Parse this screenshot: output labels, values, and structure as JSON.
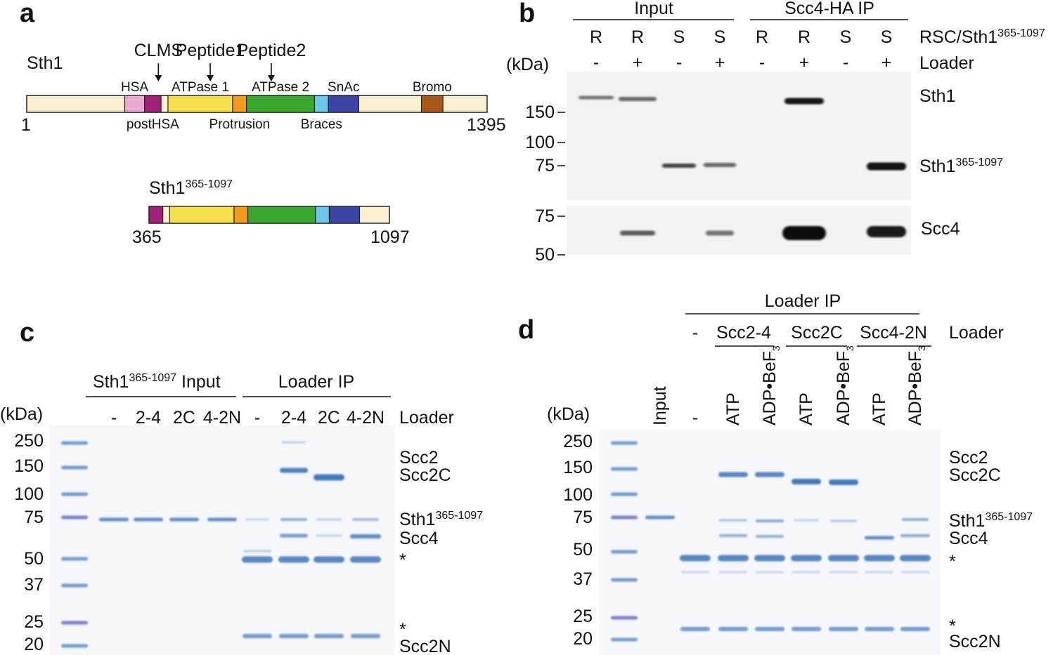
{
  "colors": {
    "linker": "#fbf0d0",
    "HSA": "#e8a9d3",
    "postHSA": "#a0207a",
    "ATPase1": "#f5e04c",
    "Protrusion": "#f39a1f",
    "ATPase2": "#3aa82f",
    "Braces": "#6cc7e8",
    "SnAc": "#3b45a6",
    "Bromo": "#a8561a",
    "blot_bg": "#f2f2f2",
    "gel_bg": "#f4f6fa",
    "coomassie": "#3d73b8"
  },
  "panel_a": {
    "label": "a",
    "protein": "Sth1",
    "start": "1",
    "end": "1395",
    "markers": [
      {
        "label": "CLMS",
        "pos": 399
      },
      {
        "label": "Peptide1",
        "pos": 556
      },
      {
        "label": "Peptide2",
        "pos": 741
      }
    ],
    "domains": [
      {
        "name": "HSA",
        "start": 297,
        "end": 357,
        "key": "HSA",
        "label_pos": "above"
      },
      {
        "name": "postHSA",
        "start": 357,
        "end": 407,
        "key": "postHSA",
        "label_pos": "below"
      },
      {
        "name": "ATPase 1",
        "start": 428,
        "end": 624,
        "key": "ATPase1",
        "label_pos": "above"
      },
      {
        "name": "Protrusion",
        "start": 624,
        "end": 666,
        "key": "Protrusion",
        "label_pos": "below"
      },
      {
        "name": "ATPase 2",
        "start": 666,
        "end": 872,
        "key": "ATPase2",
        "label_pos": "above"
      },
      {
        "name": "Braces",
        "start": 872,
        "end": 914,
        "key": "Braces",
        "label_pos": "below"
      },
      {
        "name": "SnAc",
        "start": 914,
        "end": 1006,
        "key": "SnAc",
        "label_pos": "above"
      },
      {
        "name": "Bromo",
        "start": 1196,
        "end": 1261,
        "key": "Bromo",
        "label_pos": "above"
      }
    ],
    "construct": {
      "name": "Sth1",
      "superscript": "365-1097",
      "start": "365",
      "end": "1097",
      "range": [
        365,
        1097
      ]
    }
  },
  "panel_b": {
    "label": "b",
    "group_labels": [
      "Input",
      "Scc4-HA IP"
    ],
    "row1_label": "RSC/Sth1",
    "row1_superscript": "365-1097",
    "row2_label": "Loader",
    "kda_label": "(kDa)",
    "lanes": [
      {
        "strain": "R",
        "loader": "-"
      },
      {
        "strain": "R",
        "loader": "+"
      },
      {
        "strain": "S",
        "loader": "-"
      },
      {
        "strain": "S",
        "loader": "+"
      },
      {
        "strain": "R",
        "loader": "-"
      },
      {
        "strain": "R",
        "loader": "+"
      },
      {
        "strain": "S",
        "loader": "-"
      },
      {
        "strain": "S",
        "loader": "+"
      }
    ],
    "top_ladder": [
      "150",
      "100",
      "75"
    ],
    "bottom_ladder": [
      "75",
      "50"
    ],
    "bands": {
      "sth1": "Sth1",
      "sth1_trunc": "Sth1",
      "sth1_trunc_sup": "365-1097",
      "scc4": "Scc4"
    }
  },
  "panel_c": {
    "label": "c",
    "input_group": "Input",
    "input_group_prefix": "Sth1",
    "input_group_sup": "365-1097",
    "ip_group": "Loader IP",
    "row_label": "Loader",
    "kda_label": "(kDa)",
    "lanes": [
      "-",
      "2-4",
      "2C",
      "4-2N",
      "-",
      "2-4",
      "2C",
      "4-2N"
    ],
    "ladder": [
      "250",
      "150",
      "100",
      "75",
      "50",
      "37",
      "25",
      "20"
    ],
    "right_labels": [
      "Scc2",
      "Scc2C",
      "Sth1",
      "Scc4",
      "*",
      "*",
      "Scc2N"
    ],
    "right_sup": "365-1097"
  },
  "panel_d": {
    "label": "d",
    "ip_group": "Loader IP",
    "row_label": "Loader",
    "kda_label": "(kDa)",
    "loader_groups": [
      "-",
      "Scc2-4",
      "Scc2C",
      "Scc4-2N"
    ],
    "lanes": [
      "Input",
      "-",
      "ATP",
      "ADP•BeF",
      "ATP",
      "ADP•BeF",
      "ATP",
      "ADP•BeF"
    ],
    "bef_sub": "3",
    "ladder": [
      "250",
      "150",
      "100",
      "75",
      "50",
      "37",
      "25",
      "20"
    ],
    "right_labels": [
      "Scc2",
      "Scc2C",
      "Sth1",
      "Scc4",
      "*",
      "*",
      "Scc2N"
    ],
    "right_sup": "365-1097"
  }
}
